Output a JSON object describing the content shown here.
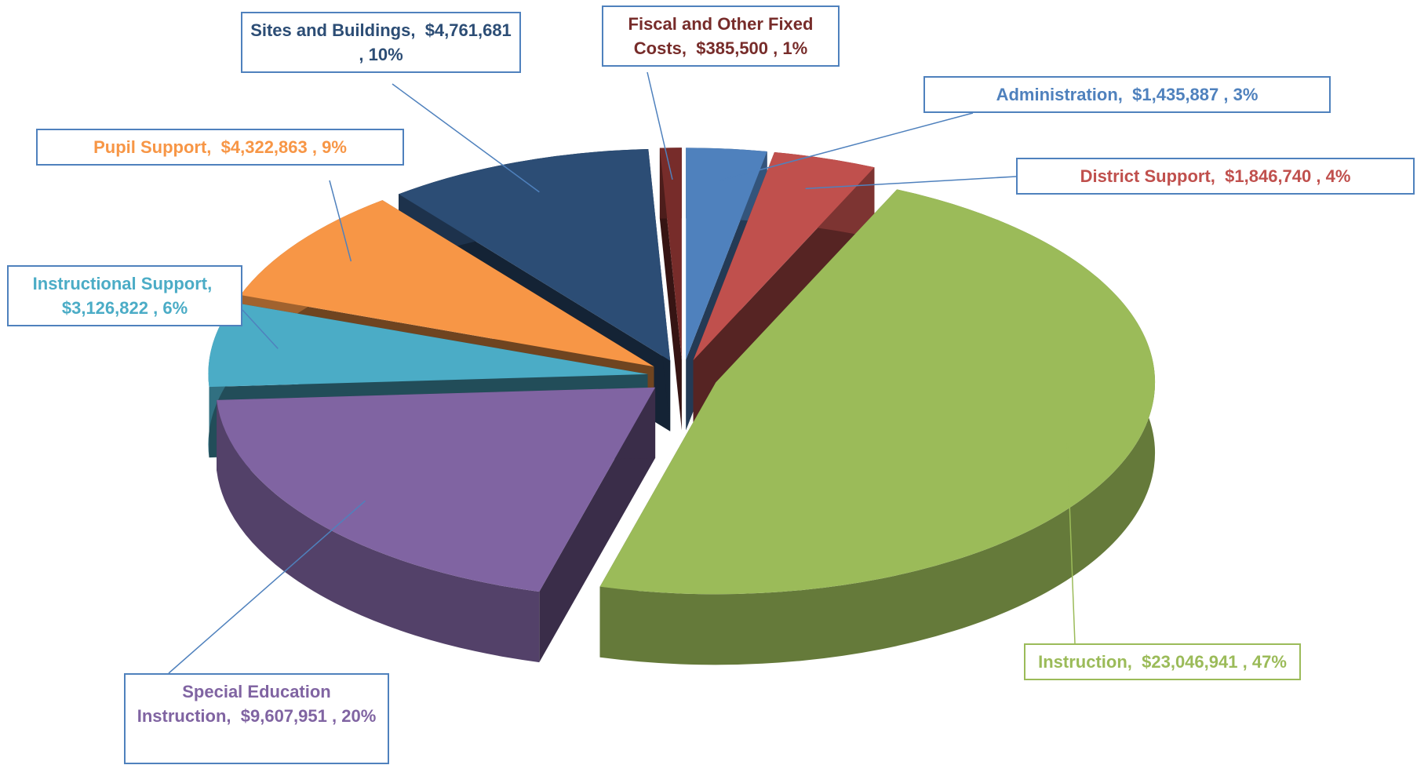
{
  "chart_data": {
    "type": "pie3d",
    "categories": [
      "Administration",
      "District Support",
      "Instruction",
      "Special Education Instruction",
      "Instructional Support",
      "Pupil Support",
      "Sites and Buildings",
      "Fiscal and Other Fixed Costs"
    ],
    "values": [
      1435887,
      1846740,
      23046941,
      9607951,
      3126822,
      4322863,
      4761681,
      385500
    ],
    "value_labels": [
      "$1,435,887",
      "$1,846,740",
      "$23,046,941",
      "$9,607,951",
      "$3,126,822",
      "$4,322,863",
      "$4,761,681",
      "$385,500"
    ],
    "percents": [
      3,
      4,
      47,
      20,
      6,
      9,
      10,
      1
    ],
    "percent_labels": [
      "3%",
      "4%",
      "47%",
      "20%",
      "6%",
      "9%",
      "10%",
      "1%"
    ],
    "label_separator": ",",
    "colors": [
      "#4f81bd",
      "#c0504d",
      "#9bbb59",
      "#8064a2",
      "#4bacc6",
      "#f79646",
      "#2c4d75",
      "#772c2a"
    ]
  }
}
